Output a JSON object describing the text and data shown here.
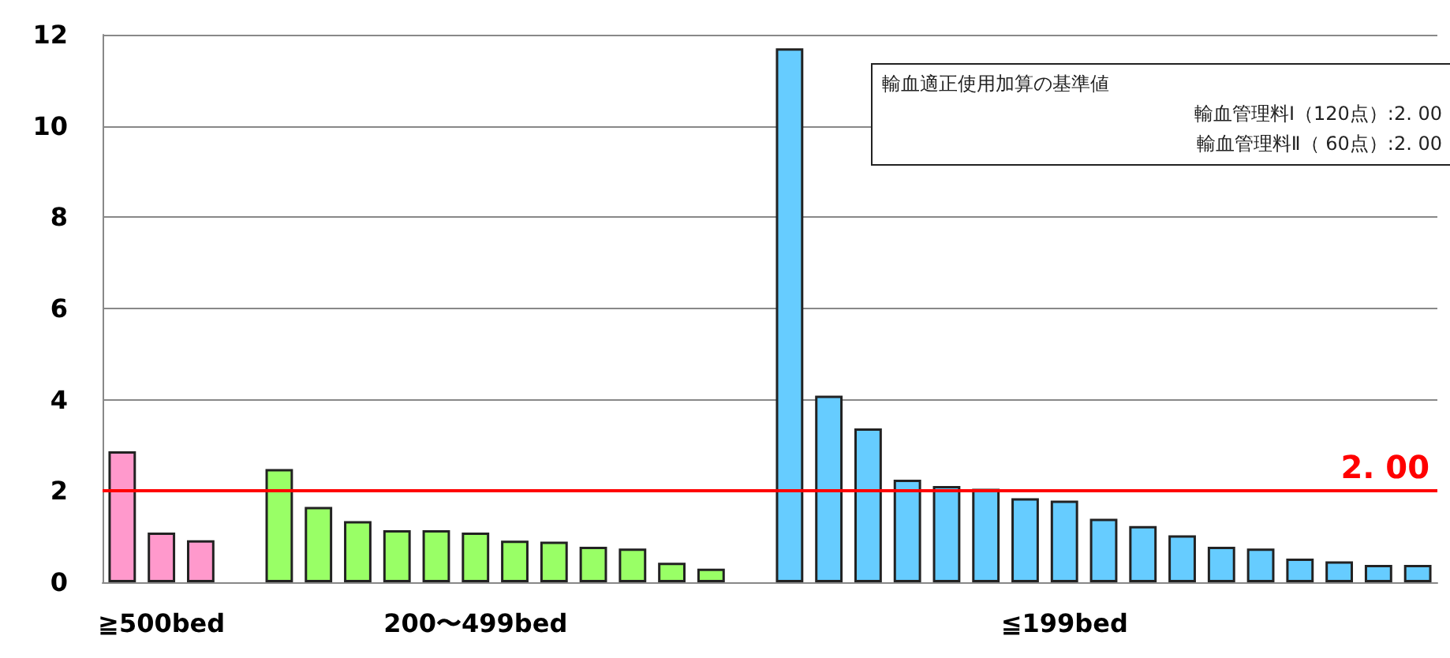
{
  "chart_data": {
    "type": "bar",
    "categories": [
      null,
      "≧500bed",
      null,
      null,
      null,
      null,
      null,
      null,
      null,
      "200〜499bed",
      null,
      null,
      null,
      null,
      null,
      null,
      null,
      null,
      null,
      null,
      null,
      null,
      null,
      null,
      "≦199bed",
      null,
      null,
      null,
      null,
      null,
      null,
      null,
      null,
      null
    ],
    "values": [
      2.87,
      1.09,
      0.92,
      null,
      2.48,
      1.65,
      1.34,
      1.14,
      1.14,
      1.09,
      0.91,
      0.89,
      0.78,
      0.74,
      0.43,
      0.3,
      null,
      11.7,
      4.09,
      3.37,
      2.25,
      2.11,
      2.05,
      1.84,
      1.79,
      1.39,
      1.23,
      1.03,
      0.78,
      0.74,
      0.52,
      0.46,
      0.38,
      0.38
    ],
    "colors": [
      "#ff99cc",
      "#ff99cc",
      "#ff99cc",
      null,
      "#99ff66",
      "#99ff66",
      "#99ff66",
      "#99ff66",
      "#99ff66",
      "#99ff66",
      "#99ff66",
      "#99ff66",
      "#99ff66",
      "#99ff66",
      "#99ff66",
      "#99ff66",
      null,
      "#66ccff",
      "#66ccff",
      "#66ccff",
      "#66ccff",
      "#66ccff",
      "#66ccff",
      "#66ccff",
      "#66ccff",
      "#66ccff",
      "#66ccff",
      "#66ccff",
      "#66ccff",
      "#66ccff",
      "#66ccff",
      "#66ccff",
      "#66ccff",
      "#66ccff"
    ],
    "ylim": [
      0,
      12
    ],
    "yticks": [
      0,
      2,
      4,
      6,
      8,
      10,
      12
    ],
    "grid": "y",
    "ref_lines": [
      {
        "axis": "y",
        "value": 2,
        "label": "2. 00",
        "color": "#ff0000"
      }
    ],
    "annotations": [
      "輸血適正使用加算の基準値",
      "輸血管理料Ⅰ（120点）:2. 00",
      "輸血管理料Ⅱ（ 60点）:2. 00"
    ]
  }
}
